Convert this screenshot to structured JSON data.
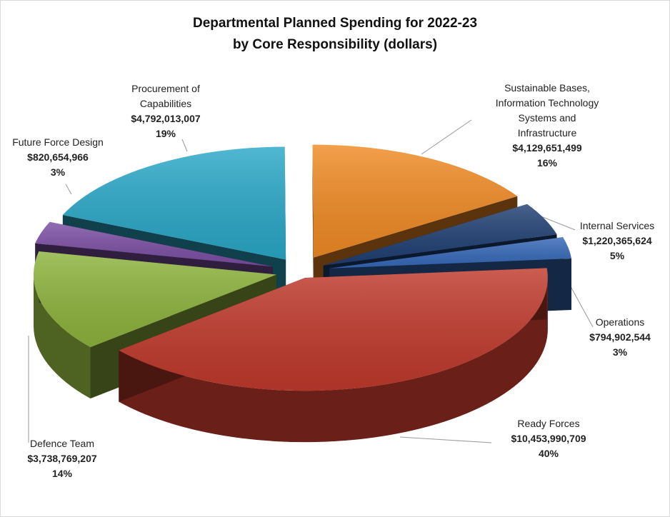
{
  "title_line1": "Departmental Planned Spending for 2022-23",
  "title_line2": "by Core Responsibility (dollars)",
  "chart_data": {
    "type": "pie",
    "title": "Departmental Planned Spending for 2022-23 by Core Responsibility (dollars)",
    "slices": [
      {
        "name": "Ready Forces",
        "value": 10453990709,
        "value_label": "$10,453,990,709",
        "percent_label": "40%",
        "color": "#c0392b"
      },
      {
        "name": "Defence Team",
        "value": 3738769207,
        "value_label": "$3,738,769,207",
        "percent_label": "14%",
        "color": "#8db33c"
      },
      {
        "name": "Future Force Design",
        "value": 820654966,
        "value_label": "$820,654,966",
        "percent_label": "3%",
        "color": "#7b4ea3"
      },
      {
        "name": "Procurement of\nCapabilities",
        "value": 4792013007,
        "value_label": "$4,792,013,007",
        "percent_label": "19%",
        "color": "#2aa8c8"
      },
      {
        "name": "Sustainable Bases,\nInformation Technology\nSystems and\nInfrastructure",
        "value": 4129651499,
        "value_label": "$4,129,651,499",
        "percent_label": "16%",
        "color": "#f08a24"
      },
      {
        "name": "Internal Services",
        "value": 1220365624,
        "value_label": "$1,220,365,624",
        "percent_label": "5%",
        "color": "#1f3f73"
      },
      {
        "name": "Operations",
        "value": 794902544,
        "value_label": "$794,902,544",
        "percent_label": "3%",
        "color": "#3568b8"
      }
    ]
  }
}
